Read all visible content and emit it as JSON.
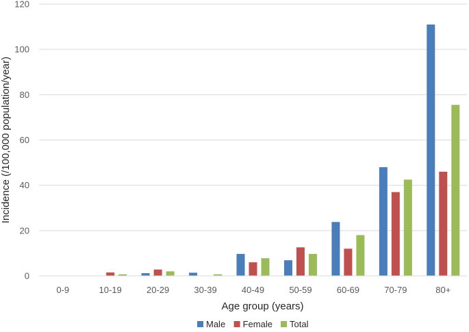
{
  "chart_data": {
    "type": "bar",
    "title": "",
    "xlabel": "Age group (years)",
    "ylabel": "Incidence (/100,000 population/year)",
    "categories": [
      "0-9",
      "10-19",
      "20-29",
      "30-39",
      "40-49",
      "50-59",
      "60-69",
      "70-79",
      "80+"
    ],
    "series": [
      {
        "name": "Male",
        "color": "#4A7EBB",
        "values": [
          0,
          0,
          1.2,
          1.4,
          9.7,
          6.9,
          23.8,
          48.0,
          111.0
        ]
      },
      {
        "name": "Female",
        "color": "#C0504D",
        "values": [
          0,
          1.5,
          2.8,
          0,
          6.0,
          12.6,
          12.0,
          37.0,
          46.0
        ]
      },
      {
        "name": "Total",
        "color": "#9BBB59",
        "values": [
          0,
          0.7,
          2.0,
          0.7,
          7.8,
          9.7,
          18.0,
          42.5,
          75.5
        ]
      }
    ],
    "ylim": [
      0,
      120
    ],
    "yticks": [
      0,
      20,
      40,
      60,
      80,
      100,
      120
    ],
    "grid": true,
    "legend_position": "bottom"
  }
}
